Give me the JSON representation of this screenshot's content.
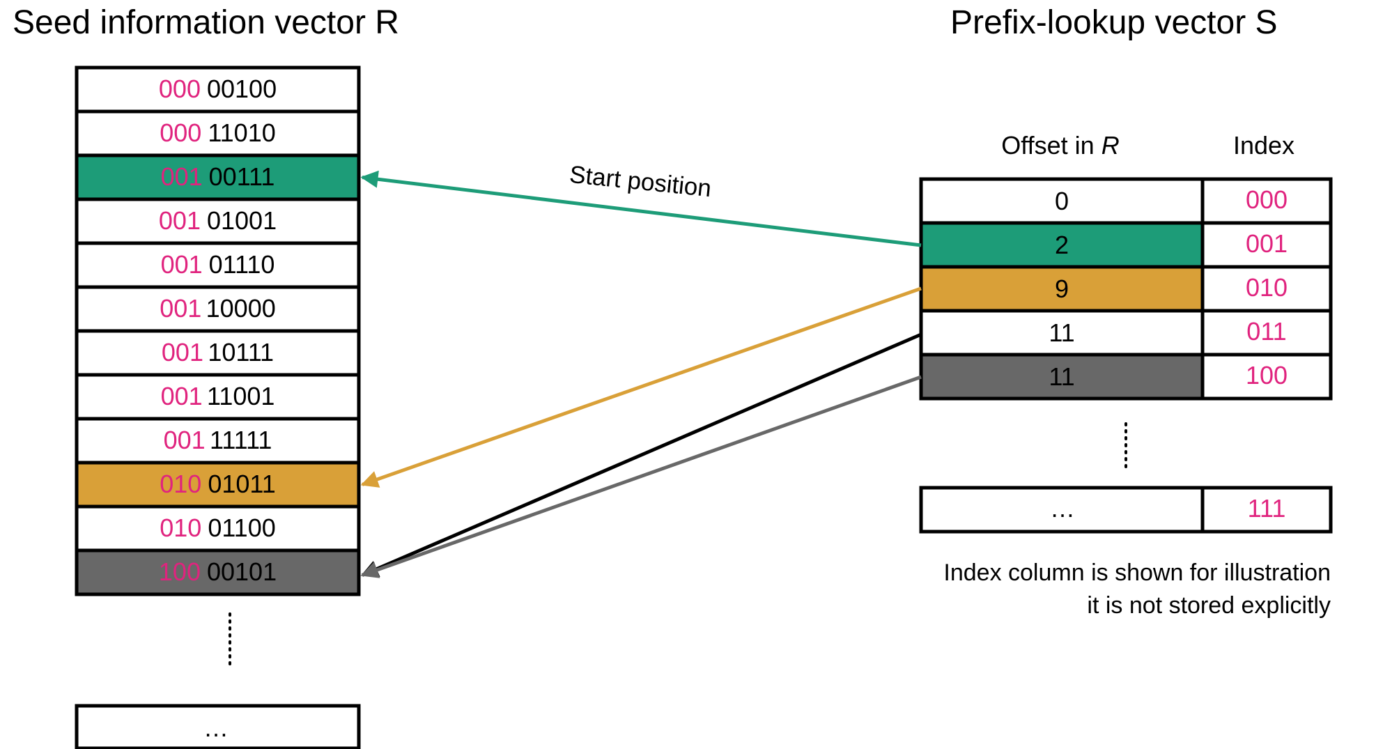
{
  "colors": {
    "prefix": "#e0237e",
    "text": "#000000",
    "green": "#1d9c78",
    "orange": "#d9a038",
    "gray": "#686868",
    "white": "#ffffff"
  },
  "vector_r": {
    "title": "Seed information vector R",
    "rows": [
      {
        "prefix": "000",
        "suffix": "00100",
        "highlight": "white"
      },
      {
        "prefix": "000",
        "suffix": "11010",
        "highlight": "white"
      },
      {
        "prefix": "001",
        "suffix": "00111",
        "highlight": "green"
      },
      {
        "prefix": "001",
        "suffix": "01001",
        "highlight": "white"
      },
      {
        "prefix": "001",
        "suffix": "01110",
        "highlight": "white"
      },
      {
        "prefix": "001",
        "suffix": "10000",
        "highlight": "white"
      },
      {
        "prefix": "001",
        "suffix": "10111",
        "highlight": "white"
      },
      {
        "prefix": "001",
        "suffix": "11001",
        "highlight": "white"
      },
      {
        "prefix": "001",
        "suffix": "11111",
        "highlight": "white"
      },
      {
        "prefix": "010",
        "suffix": "01011",
        "highlight": "orange"
      },
      {
        "prefix": "010",
        "suffix": "01100",
        "highlight": "white"
      },
      {
        "prefix": "100",
        "suffix": "00101",
        "highlight": "gray"
      }
    ],
    "last_row": "…"
  },
  "vector_s": {
    "title": "Prefix-lookup vector S",
    "col_offset_label": "Offset in ",
    "col_offset_var": "R",
    "col_index_label": "Index",
    "rows": [
      {
        "offset": "0",
        "index": "000",
        "highlight": "white"
      },
      {
        "offset": "2",
        "index": "001",
        "highlight": "green"
      },
      {
        "offset": "9",
        "index": "010",
        "highlight": "orange"
      },
      {
        "offset": "11",
        "index": "011",
        "highlight": "white"
      },
      {
        "offset": "11",
        "index": "100",
        "highlight": "gray"
      }
    ],
    "last_row": {
      "offset": "…",
      "index": "111"
    }
  },
  "annotations": {
    "arrow_label": "Start position",
    "note_line1": "Index column is shown for illustration",
    "note_line2": "it is not stored explicitly"
  },
  "arrows": [
    {
      "from_s_row": 1,
      "to_r_row": 2,
      "color": "green"
    },
    {
      "from_s_row": 2,
      "to_r_row": 9,
      "color": "orange"
    },
    {
      "from_s_row": 3,
      "to_r_row": 11,
      "color": "text"
    },
    {
      "from_s_row": 4,
      "to_r_row": 11,
      "color": "gray"
    }
  ]
}
